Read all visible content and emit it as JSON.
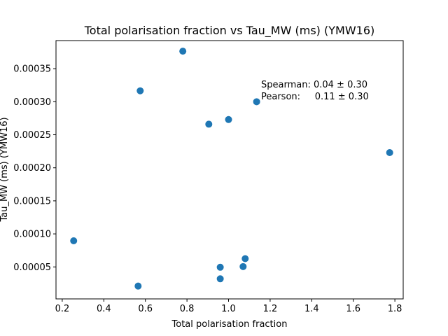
{
  "chart_data": {
    "type": "scatter",
    "title": "Total polarisation fraction vs Tau_MW (ms) (YMW16)",
    "xlabel": "Total polarisation fraction",
    "ylabel": "Tau_MW (ms) (YMW16)",
    "xlim": [
      0.17,
      1.84
    ],
    "ylim": [
      1.6e-06,
      0.0003925
    ],
    "xticks": [
      "0.2",
      "0.4",
      "0.6",
      "0.8",
      "1.0",
      "1.2",
      "1.4",
      "1.6",
      "1.8"
    ],
    "yticks": [
      "0.00005",
      "0.00010",
      "0.00015",
      "0.00020",
      "0.00025",
      "0.00030",
      "0.00035"
    ],
    "grid": false,
    "marker_color": "#1f77b4",
    "points": [
      {
        "x": 0.255,
        "y": 8.95e-05
      },
      {
        "x": 0.565,
        "y": 2.1e-05
      },
      {
        "x": 0.575,
        "y": 0.0003165
      },
      {
        "x": 0.78,
        "y": 0.0003765
      },
      {
        "x": 0.905,
        "y": 0.000266
      },
      {
        "x": 0.96,
        "y": 4.95e-05
      },
      {
        "x": 0.96,
        "y": 3.2e-05
      },
      {
        "x": 1.0,
        "y": 0.000273
      },
      {
        "x": 1.07,
        "y": 5.05e-05
      },
      {
        "x": 1.08,
        "y": 6.25e-05
      },
      {
        "x": 1.135,
        "y": 0.0003
      },
      {
        "x": 1.775,
        "y": 0.000223
      }
    ],
    "annotations": [
      "Spearman: 0.04 ± 0.30",
      "Pearson:     0.11 ± 0.30"
    ]
  }
}
